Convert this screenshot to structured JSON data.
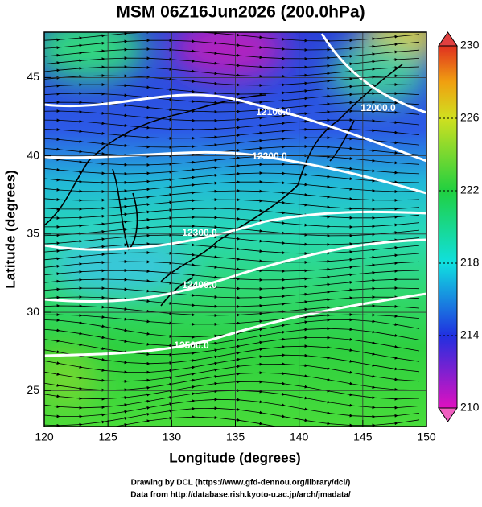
{
  "title": "MSM 06Z16Jun2026 (200.0hPa)",
  "x_axis": {
    "label": "Longitude (degrees)",
    "lim": [
      120,
      150
    ],
    "ticks": [
      120,
      125,
      130,
      135,
      140,
      145,
      150
    ]
  },
  "y_axis": {
    "label": "Latitude  (degrees)",
    "lim": [
      22.7,
      47.9
    ],
    "ticks": [
      25,
      30,
      35,
      40,
      45
    ]
  },
  "colorbar": {
    "lim": [
      210,
      230
    ],
    "ticks": [
      210,
      214,
      218,
      222,
      226,
      230
    ]
  },
  "contour_labels": [
    "12000.0",
    "12100.0",
    "12200.0",
    "12300.0",
    "12400.0",
    "12500.0"
  ],
  "credits": [
    "Drawing by DCL (https://www.gfd-dennou.org/library/dcl/)",
    "Data from http://database.rish.kyoto-u.ac.jp/arch/jmadata/"
  ]
}
